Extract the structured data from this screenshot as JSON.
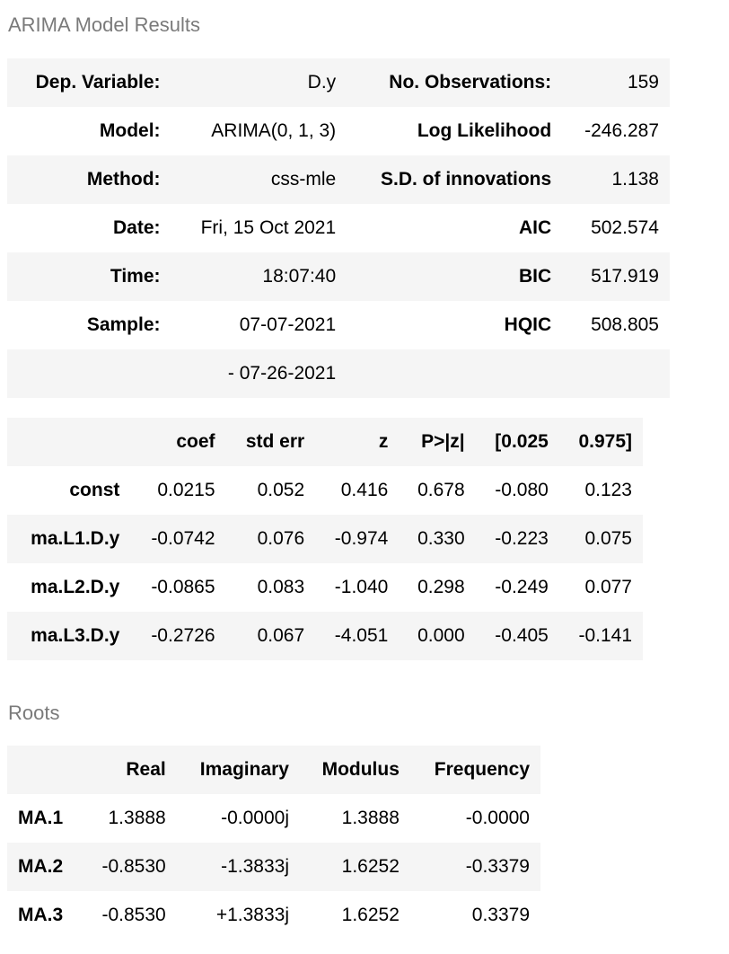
{
  "summary": {
    "caption": "ARIMA Model Results",
    "rows": [
      {
        "l1": "Dep. Variable:",
        "v1": "D.y",
        "l2": "No. Observations:",
        "v2": "159"
      },
      {
        "l1": "Model:",
        "v1": "ARIMA(0, 1, 3)",
        "l2": "Log Likelihood",
        "v2": "-246.287"
      },
      {
        "l1": "Method:",
        "v1": "css-mle",
        "l2": "S.D. of innovations",
        "v2": "1.138"
      },
      {
        "l1": "Date:",
        "v1": "Fri, 15 Oct 2021",
        "l2": "AIC",
        "v2": "502.574"
      },
      {
        "l1": "Time:",
        "v1": "18:07:40",
        "l2": "BIC",
        "v2": "517.919"
      },
      {
        "l1": "Sample:",
        "v1": "07-07-2021",
        "l2": "HQIC",
        "v2": "508.805"
      },
      {
        "l1": "",
        "v1": "- 07-26-2021",
        "l2": "",
        "v2": ""
      }
    ]
  },
  "coef": {
    "headers": [
      "",
      "coef",
      "std err",
      "z",
      "P>|z|",
      "[0.025",
      "0.975]"
    ],
    "rows": [
      [
        "const",
        "0.0215",
        "0.052",
        "0.416",
        "0.678",
        "-0.080",
        "0.123"
      ],
      [
        "ma.L1.D.y",
        "-0.0742",
        "0.076",
        "-0.974",
        "0.330",
        "-0.223",
        "0.075"
      ],
      [
        "ma.L2.D.y",
        "-0.0865",
        "0.083",
        "-1.040",
        "0.298",
        "-0.249",
        "0.077"
      ],
      [
        "ma.L3.D.y",
        "-0.2726",
        "0.067",
        "-4.051",
        "0.000",
        "-0.405",
        "-0.141"
      ]
    ]
  },
  "roots": {
    "caption": "Roots",
    "headers": [
      "",
      "Real",
      "Imaginary",
      "Modulus",
      "Frequency"
    ],
    "rows": [
      [
        "MA.1",
        "1.3888",
        "-0.0000j",
        "1.3888",
        "-0.0000"
      ],
      [
        "MA.2",
        "-0.8530",
        "-1.3833j",
        "1.6252",
        "-0.3379"
      ],
      [
        "MA.3",
        "-0.8530",
        "+1.3833j",
        "1.6252",
        "0.3379"
      ]
    ]
  }
}
